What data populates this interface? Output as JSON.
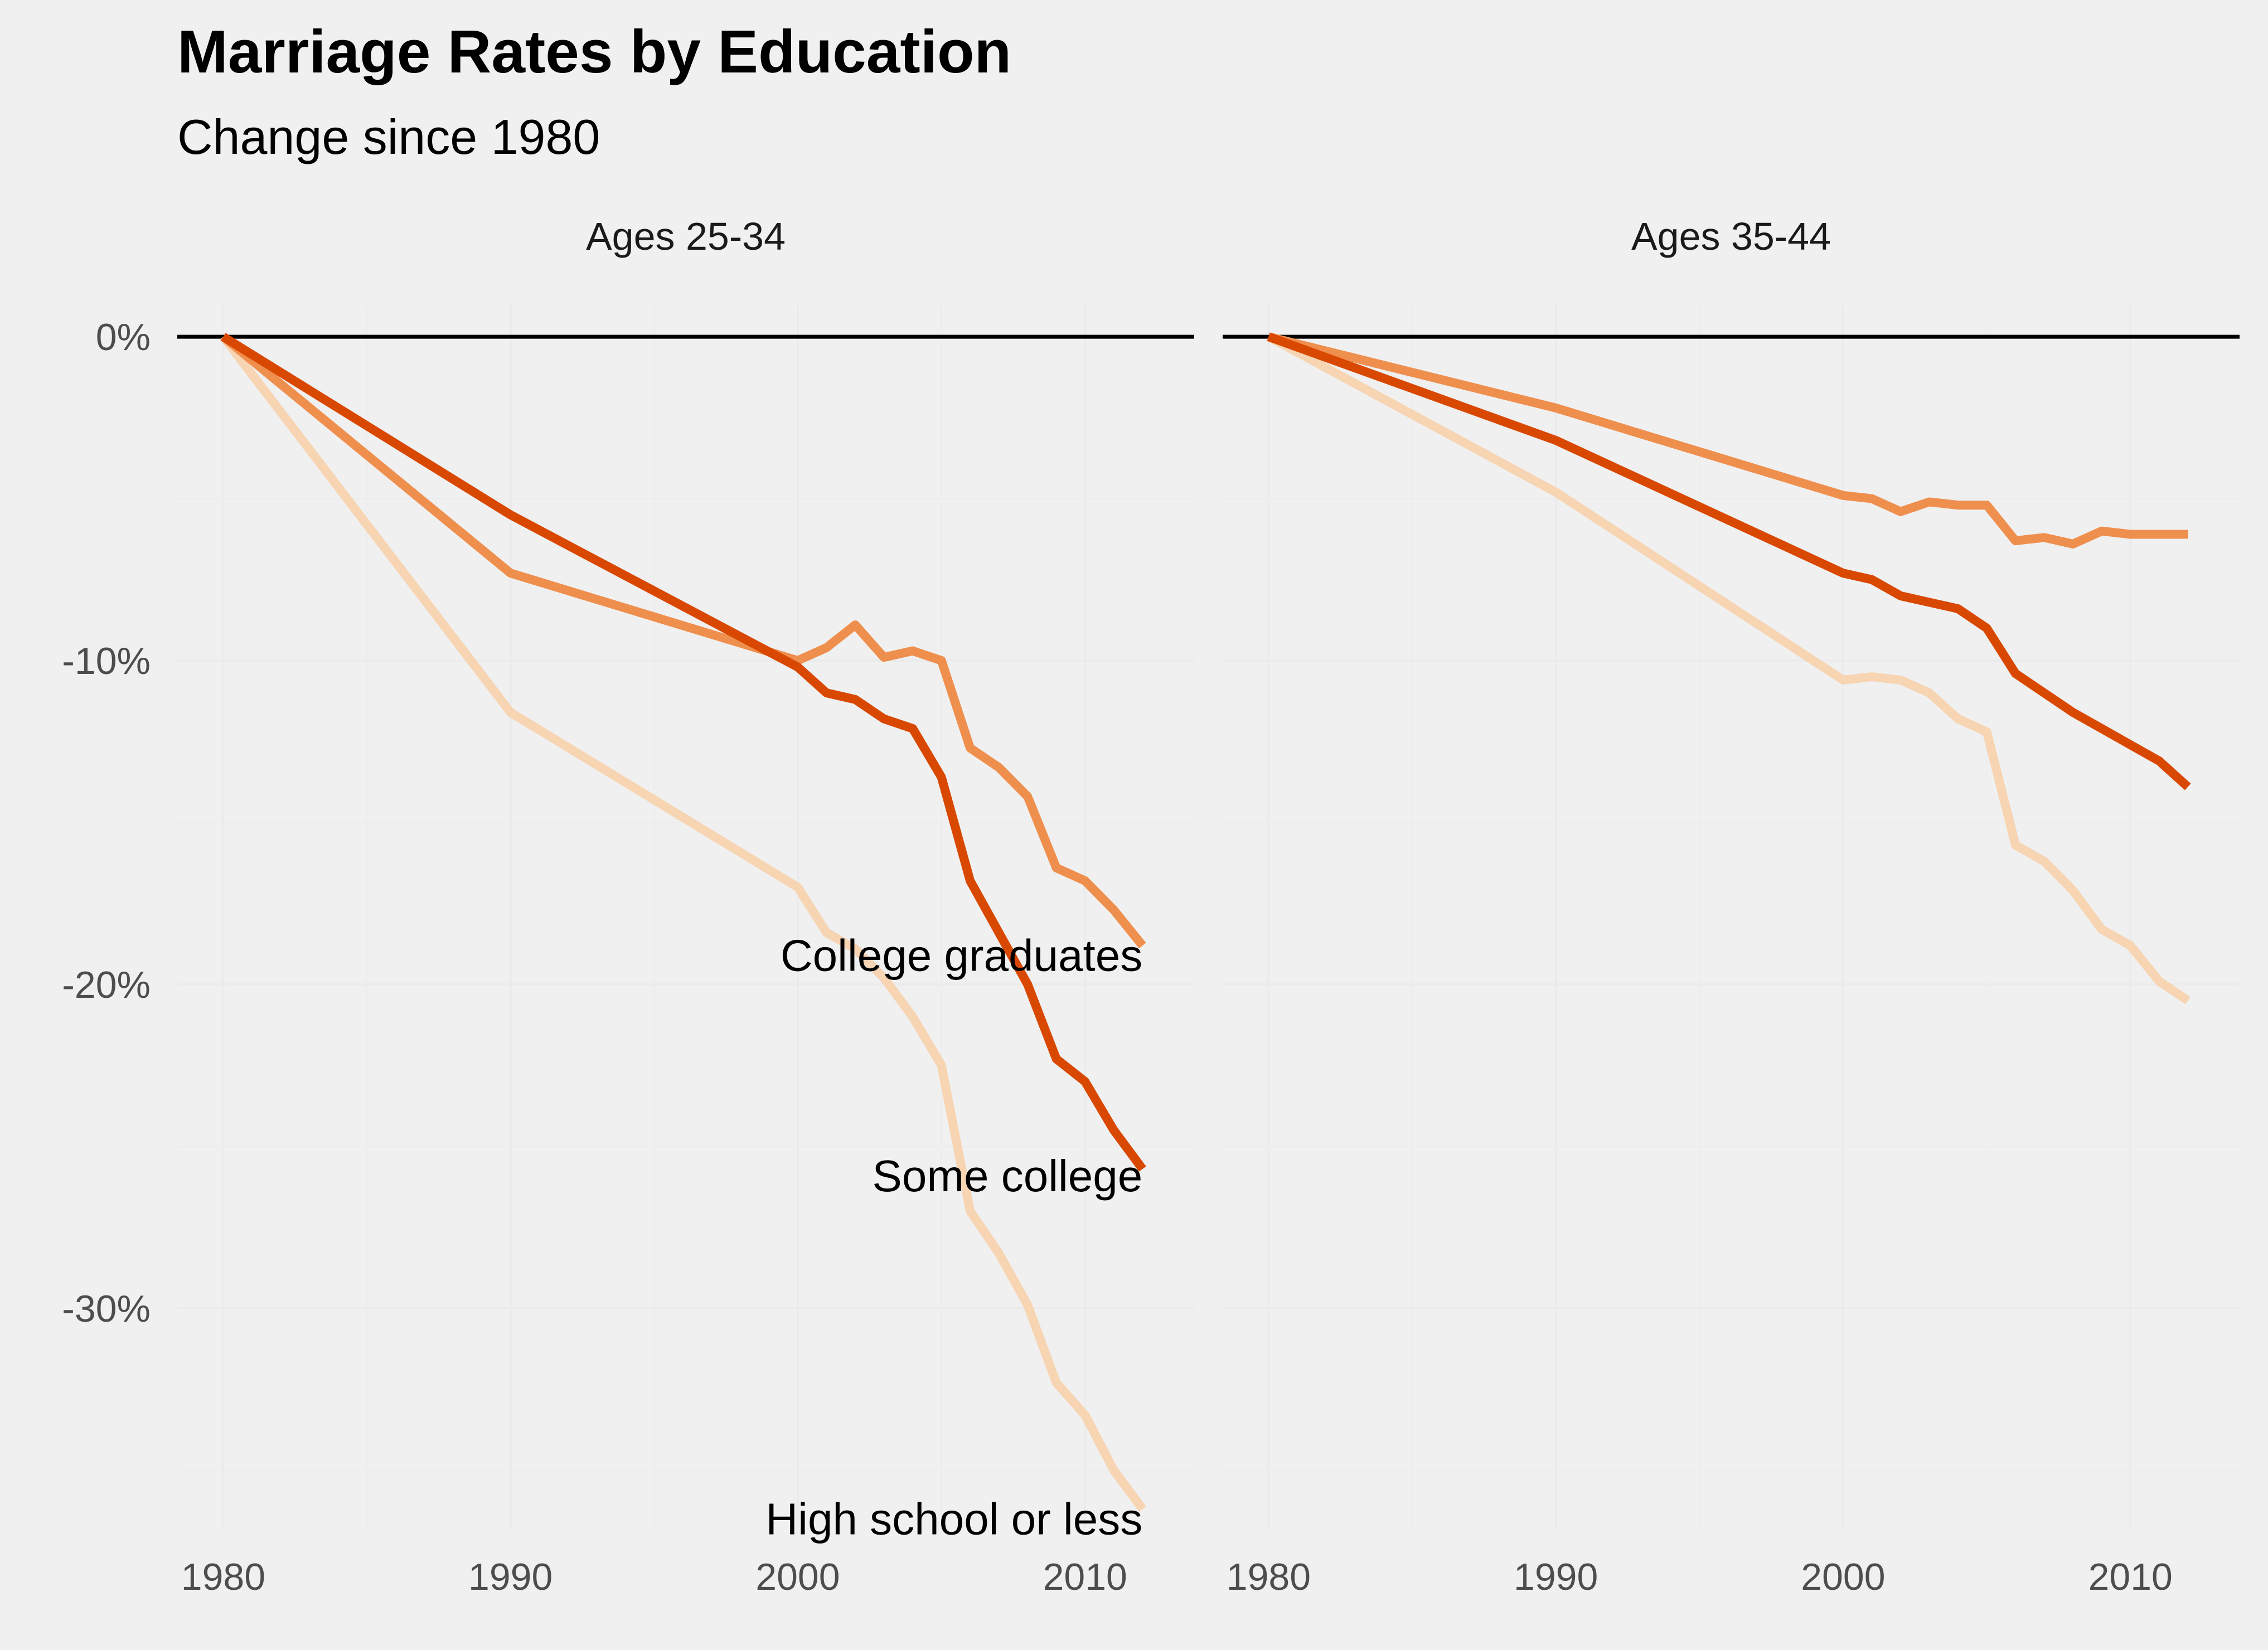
{
  "chart_data": {
    "type": "line",
    "title": "Marriage Rates by Education",
    "subtitle": "Change since 1980",
    "xlabel": "",
    "ylabel": "",
    "xlim": [
      1978.4,
      2013.8
    ],
    "ylim": [
      -36.8,
      1.0
    ],
    "x_ticks": [
      1980,
      1990,
      2000,
      2010
    ],
    "y_ticks": [
      0,
      -10,
      -20,
      -30
    ],
    "y_tick_labels": [
      "0%",
      "-10%",
      "-20%",
      "-30%"
    ],
    "grid": true,
    "legend": "none",
    "colors": {
      "college_graduates": "#ef8f4e",
      "some_college": "#d94801",
      "high_school": "#f7d4b2"
    },
    "x": [
      1980,
      1990,
      2000,
      2001,
      2002,
      2003,
      2004,
      2005,
      2006,
      2007,
      2008,
      2009,
      2010,
      2011,
      2012
    ],
    "panels": [
      {
        "label": "Ages 25-34",
        "series": [
          {
            "key": "high_school",
            "values": [
              0,
              -11.6,
              -17.0,
              -18.4,
              -18.9,
              -19.8,
              -21.0,
              -22.5,
              -27.0,
              -28.3,
              -29.9,
              -32.3,
              -33.3,
              -35.0,
              -36.2
            ]
          },
          {
            "key": "college_graduates",
            "label": "College graduates",
            "values": [
              0,
              -7.3,
              -10.0,
              -9.6,
              -8.9,
              -9.9,
              -9.7,
              -10.0,
              -12.7,
              -13.3,
              -14.2,
              -16.4,
              -16.8,
              -17.7,
              -18.8
            ]
          },
          {
            "key": "some_college",
            "label": "Some college",
            "values": [
              0,
              -5.5,
              -10.2,
              -11.0,
              -11.2,
              -11.8,
              -12.1,
              -13.6,
              -16.8,
              -18.4,
              -20.0,
              -22.3,
              -23.0,
              -24.5,
              -25.7
            ]
          }
        ],
        "end_labels": [
          {
            "text": "College graduates",
            "y": -19.1
          },
          {
            "text": "Some college",
            "y": -25.9
          },
          {
            "text": "High school or less",
            "y": -36.5
          }
        ]
      },
      {
        "label": "Ages 35-44",
        "series": [
          {
            "key": "high_school",
            "values": [
              0,
              -4.8,
              -10.6,
              -10.5,
              -10.6,
              -11.0,
              -11.8,
              -12.2,
              -15.7,
              -16.2,
              -17.1,
              -18.3,
              -18.8,
              -19.9,
              -20.5
            ]
          },
          {
            "key": "college_graduates",
            "values": [
              0,
              -2.2,
              -4.9,
              -5.0,
              -5.4,
              -5.1,
              -5.2,
              -5.2,
              -6.3,
              -6.2,
              -6.4,
              -6.0,
              -6.1,
              -6.1,
              -6.1
            ]
          },
          {
            "key": "some_college",
            "values": [
              0,
              -3.2,
              -7.3,
              -7.5,
              -8.0,
              -8.2,
              -8.4,
              -9.0,
              -10.4,
              -11.0,
              -11.6,
              -12.1,
              -12.6,
              -13.1,
              -13.9
            ]
          }
        ],
        "end_labels": []
      }
    ]
  }
}
